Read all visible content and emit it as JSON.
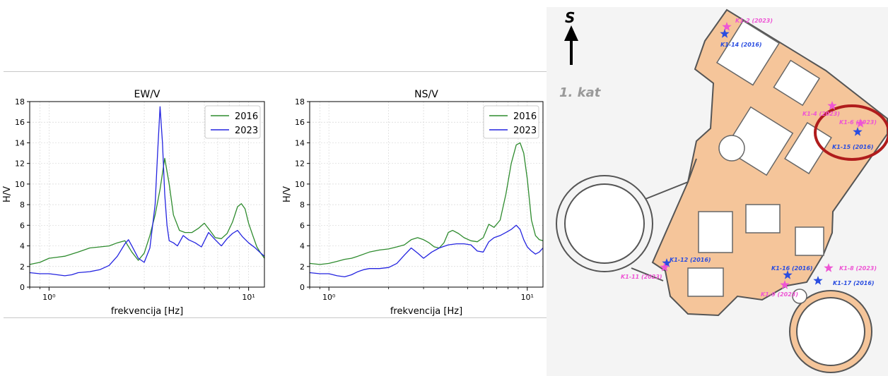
{
  "chart_data": [
    {
      "type": "line",
      "title": "EW/V",
      "xlabel": "frekvencija [Hz]",
      "ylabel": "H/V",
      "xscale": "log",
      "xlim": [
        0.8,
        12
      ],
      "ylim": [
        0,
        18
      ],
      "yticks": [
        0,
        2,
        4,
        6,
        8,
        10,
        12,
        14,
        16,
        18
      ],
      "xtick_labels": [
        "10⁰",
        "10¹"
      ],
      "grid": true,
      "legend": "top-right",
      "series": [
        {
          "name": "2016",
          "color": "#2e8b2e",
          "x": [
            0.8,
            0.9,
            1.0,
            1.1,
            1.2,
            1.4,
            1.6,
            1.8,
            2.0,
            2.2,
            2.4,
            2.6,
            2.8,
            3.0,
            3.2,
            3.4,
            3.6,
            3.8,
            4.0,
            4.2,
            4.5,
            4.8,
            5.2,
            5.6,
            6.0,
            6.4,
            6.8,
            7.3,
            7.8,
            8.3,
            8.8,
            9.2,
            9.6,
            10.0,
            10.5,
            11.0,
            11.5,
            12.0
          ],
          "y": [
            2.2,
            2.4,
            2.8,
            2.9,
            3.0,
            3.4,
            3.8,
            3.9,
            4.0,
            4.3,
            4.5,
            3.4,
            2.6,
            3.3,
            5.0,
            7.0,
            9.5,
            12.5,
            10.0,
            7.0,
            5.5,
            5.3,
            5.3,
            5.7,
            6.2,
            5.5,
            4.8,
            4.7,
            5.2,
            6.3,
            7.8,
            8.1,
            7.6,
            6.2,
            5.0,
            3.9,
            3.3,
            2.8
          ]
        },
        {
          "name": "2023",
          "color": "#2424e0",
          "x": [
            0.8,
            0.9,
            1.0,
            1.1,
            1.2,
            1.3,
            1.4,
            1.6,
            1.8,
            2.0,
            2.2,
            2.4,
            2.5,
            2.6,
            2.8,
            3.0,
            3.2,
            3.4,
            3.5,
            3.6,
            3.7,
            3.8,
            3.9,
            4.0,
            4.2,
            4.4,
            4.7,
            5.0,
            5.4,
            5.8,
            6.3,
            6.8,
            7.3,
            7.8,
            8.3,
            8.8,
            9.3,
            10.0,
            10.8,
            11.5,
            12.0
          ],
          "y": [
            1.4,
            1.3,
            1.3,
            1.2,
            1.1,
            1.2,
            1.4,
            1.5,
            1.7,
            2.1,
            3.0,
            4.2,
            4.6,
            4.0,
            2.8,
            2.4,
            3.8,
            8.0,
            13.0,
            17.5,
            14.0,
            9.0,
            6.0,
            4.5,
            4.3,
            4.0,
            5.0,
            4.6,
            4.3,
            3.9,
            5.3,
            4.6,
            4.0,
            4.7,
            5.2,
            5.5,
            4.9,
            4.3,
            3.8,
            3.3,
            3.0
          ]
        }
      ]
    },
    {
      "type": "line",
      "title": "NS/V",
      "xlabel": "frekvencija [Hz]",
      "ylabel": "H/V",
      "xscale": "log",
      "xlim": [
        0.8,
        12
      ],
      "ylim": [
        0,
        18
      ],
      "yticks": [
        0,
        2,
        4,
        6,
        8,
        10,
        12,
        14,
        16,
        18
      ],
      "xtick_labels": [
        "10⁰",
        "10¹"
      ],
      "grid": true,
      "legend": "top-right",
      "series": [
        {
          "name": "2016",
          "color": "#2e8b2e",
          "x": [
            0.8,
            0.9,
            1.0,
            1.1,
            1.2,
            1.3,
            1.4,
            1.6,
            1.8,
            2.0,
            2.2,
            2.4,
            2.6,
            2.8,
            3.0,
            3.2,
            3.4,
            3.6,
            3.8,
            4.0,
            4.2,
            4.5,
            4.8,
            5.2,
            5.6,
            6.0,
            6.4,
            6.8,
            7.3,
            7.8,
            8.3,
            8.8,
            9.2,
            9.6,
            10.0,
            10.5,
            11.0,
            11.5,
            12.0
          ],
          "y": [
            2.3,
            2.2,
            2.3,
            2.5,
            2.7,
            2.8,
            3.0,
            3.4,
            3.6,
            3.7,
            3.9,
            4.1,
            4.6,
            4.8,
            4.6,
            4.3,
            3.9,
            3.8,
            4.3,
            5.3,
            5.5,
            5.2,
            4.8,
            4.5,
            4.4,
            4.8,
            6.1,
            5.8,
            6.5,
            9.0,
            12.0,
            13.8,
            14.0,
            13.0,
            10.5,
            6.5,
            5.0,
            4.6,
            4.5
          ]
        },
        {
          "name": "2023",
          "color": "#2424e0",
          "x": [
            0.8,
            0.9,
            1.0,
            1.1,
            1.2,
            1.3,
            1.4,
            1.5,
            1.6,
            1.8,
            2.0,
            2.2,
            2.4,
            2.6,
            2.8,
            3.0,
            3.3,
            3.6,
            4.0,
            4.4,
            4.8,
            5.2,
            5.6,
            6.0,
            6.4,
            6.8,
            7.3,
            7.8,
            8.3,
            8.8,
            9.2,
            9.6,
            10.0,
            10.5,
            11.0,
            11.5,
            12.0
          ],
          "y": [
            1.4,
            1.3,
            1.3,
            1.1,
            1.0,
            1.2,
            1.5,
            1.7,
            1.8,
            1.8,
            1.9,
            2.3,
            3.1,
            3.8,
            3.3,
            2.8,
            3.4,
            3.8,
            4.1,
            4.2,
            4.2,
            4.1,
            3.5,
            3.4,
            4.4,
            4.8,
            5.0,
            5.3,
            5.6,
            6.0,
            5.6,
            4.6,
            3.9,
            3.5,
            3.2,
            3.4,
            3.8
          ]
        }
      ]
    }
  ],
  "floorplan": {
    "north_label": "S",
    "floor_label": "1. kat",
    "colors": {
      "background": "#f4f4f4",
      "room_fill": "#f5c59a",
      "walls": "#555555",
      "marker_2016": "#2a4de0",
      "marker_2023": "#ee55d4",
      "highlight": "#b01c1c"
    },
    "markers": [
      {
        "label": "K1-2 (2023)",
        "year": "2023"
      },
      {
        "label": "K1-14 (2016)",
        "year": "2016"
      },
      {
        "label": "K1-4 (2023)",
        "year": "2023"
      },
      {
        "label": "K1-6 (2023)",
        "year": "2023"
      },
      {
        "label": "K1-15 (2016)",
        "year": "2016"
      },
      {
        "label": "K1-12 (2016)",
        "year": "2016"
      },
      {
        "label": "K1-11 (2023)",
        "year": "2023"
      },
      {
        "label": "K1-16 (2016)",
        "year": "2016"
      },
      {
        "label": "K1-9 (2023)",
        "year": "2023"
      },
      {
        "label": "K1-8 (2023)",
        "year": "2023"
      },
      {
        "label": "K1-17 (2016)",
        "year": "2016"
      }
    ]
  }
}
